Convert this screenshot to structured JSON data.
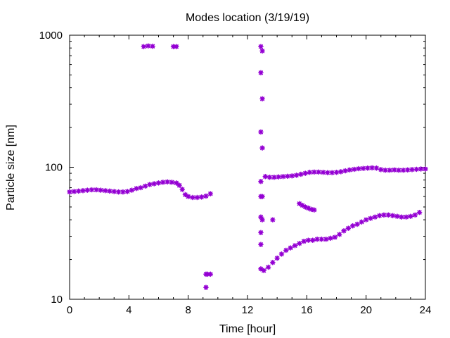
{
  "chart_data": {
    "type": "scatter",
    "title": "Modes location (3/19/19)",
    "xlabel": "Time [hour]",
    "ylabel": "Particle size [nm]",
    "xlim": [
      0,
      24
    ],
    "ylim": [
      10,
      1000
    ],
    "yscale": "log",
    "x_ticks": [
      "0",
      "4",
      "8",
      "12",
      "16",
      "20",
      "24"
    ],
    "y_ticks": [
      "10",
      "100",
      "1000"
    ],
    "marker_color": "#9400d3",
    "marker": "asterisk",
    "legend": false,
    "grid": false,
    "series": [
      {
        "values": [
          [
            0.0,
            65
          ],
          [
            0.3,
            65.5
          ],
          [
            0.6,
            66
          ],
          [
            0.9,
            66.5
          ],
          [
            1.2,
            67
          ],
          [
            1.5,
            67.5
          ],
          [
            1.8,
            67.5
          ],
          [
            2.1,
            67
          ],
          [
            2.4,
            66.5
          ],
          [
            2.7,
            66
          ],
          [
            3.0,
            65.5
          ],
          [
            3.3,
            65
          ],
          [
            3.6,
            65
          ],
          [
            3.9,
            65.5
          ],
          [
            4.2,
            67
          ],
          [
            4.5,
            69
          ],
          [
            4.8,
            70
          ],
          [
            5.1,
            72
          ],
          [
            5.4,
            74
          ],
          [
            5.7,
            75
          ],
          [
            6.0,
            76
          ],
          [
            6.3,
            77
          ],
          [
            6.6,
            77.5
          ],
          [
            6.9,
            77
          ],
          [
            7.2,
            76
          ],
          [
            7.4,
            73
          ],
          [
            7.6,
            68
          ],
          [
            7.8,
            62
          ],
          [
            8.0,
            60
          ],
          [
            8.3,
            59
          ],
          [
            8.6,
            59
          ],
          [
            8.9,
            59.5
          ],
          [
            9.2,
            60.5
          ],
          [
            9.5,
            63
          ],
          [
            13.2,
            85
          ],
          [
            13.5,
            84
          ],
          [
            13.8,
            84
          ],
          [
            14.1,
            84.5
          ],
          [
            14.4,
            85
          ],
          [
            14.7,
            85.5
          ],
          [
            15.0,
            86
          ],
          [
            15.3,
            87
          ],
          [
            15.6,
            88.5
          ],
          [
            15.9,
            90
          ],
          [
            16.2,
            91.5
          ],
          [
            16.5,
            92
          ],
          [
            16.8,
            92
          ],
          [
            17.1,
            91.5
          ],
          [
            17.4,
            91
          ],
          [
            17.7,
            91
          ],
          [
            18.0,
            91.5
          ],
          [
            18.3,
            92.5
          ],
          [
            18.6,
            94
          ],
          [
            18.9,
            95.5
          ],
          [
            19.2,
            96.5
          ],
          [
            19.5,
            97.5
          ],
          [
            19.8,
            98
          ],
          [
            20.1,
            98.5
          ],
          [
            20.4,
            99
          ],
          [
            20.7,
            98.5
          ],
          [
            21.0,
            96
          ],
          [
            21.3,
            95
          ],
          [
            21.6,
            95
          ],
          [
            21.9,
            95.5
          ],
          [
            22.2,
            95
          ],
          [
            22.5,
            95
          ],
          [
            22.8,
            95.5
          ],
          [
            23.1,
            96
          ],
          [
            23.4,
            96.5
          ],
          [
            23.7,
            97
          ],
          [
            24.0,
            97
          ],
          [
            12.9,
            17
          ],
          [
            13.1,
            16.5
          ],
          [
            13.4,
            17.5
          ],
          [
            13.7,
            19
          ],
          [
            14.0,
            20.5
          ],
          [
            14.3,
            22
          ],
          [
            14.6,
            23.5
          ],
          [
            14.9,
            24.5
          ],
          [
            15.2,
            25.5
          ],
          [
            15.5,
            26.5
          ],
          [
            15.8,
            27.5
          ],
          [
            16.1,
            28
          ],
          [
            16.4,
            28
          ],
          [
            16.7,
            28.5
          ],
          [
            17.0,
            28.5
          ],
          [
            17.3,
            28.5
          ],
          [
            17.6,
            29
          ],
          [
            17.9,
            29.5
          ],
          [
            18.2,
            31
          ],
          [
            18.5,
            33
          ],
          [
            18.8,
            34.5
          ],
          [
            19.1,
            36
          ],
          [
            19.4,
            37
          ],
          [
            19.7,
            38.5
          ],
          [
            20.0,
            40
          ],
          [
            20.3,
            41
          ],
          [
            20.6,
            42
          ],
          [
            20.9,
            43
          ],
          [
            21.2,
            43.5
          ],
          [
            21.5,
            43.5
          ],
          [
            21.8,
            43
          ],
          [
            22.1,
            42.5
          ],
          [
            22.4,
            42
          ],
          [
            22.7,
            42
          ],
          [
            23.0,
            42.5
          ],
          [
            23.3,
            43.5
          ],
          [
            23.6,
            45.5
          ],
          [
            15.5,
            53
          ],
          [
            15.7,
            51.5
          ],
          [
            15.9,
            50
          ],
          [
            16.1,
            49
          ],
          [
            16.3,
            48
          ],
          [
            16.5,
            47.5
          ],
          [
            5.0,
            820
          ],
          [
            5.3,
            830
          ],
          [
            5.6,
            825
          ],
          [
            7.0,
            820
          ],
          [
            7.2,
            820
          ],
          [
            12.9,
            820
          ],
          [
            13.0,
            760
          ],
          [
            12.9,
            520
          ],
          [
            13.0,
            330
          ],
          [
            12.9,
            185
          ],
          [
            13.0,
            140
          ],
          [
            12.9,
            78
          ],
          [
            13.0,
            60
          ],
          [
            12.9,
            60
          ],
          [
            12.9,
            42
          ],
          [
            13.0,
            40
          ],
          [
            12.9,
            32
          ],
          [
            12.9,
            26
          ],
          [
            13.7,
            40
          ],
          [
            9.2,
            15.5
          ],
          [
            9.3,
            15.5
          ],
          [
            9.5,
            15.5
          ],
          [
            9.2,
            12.3
          ]
        ]
      }
    ]
  }
}
